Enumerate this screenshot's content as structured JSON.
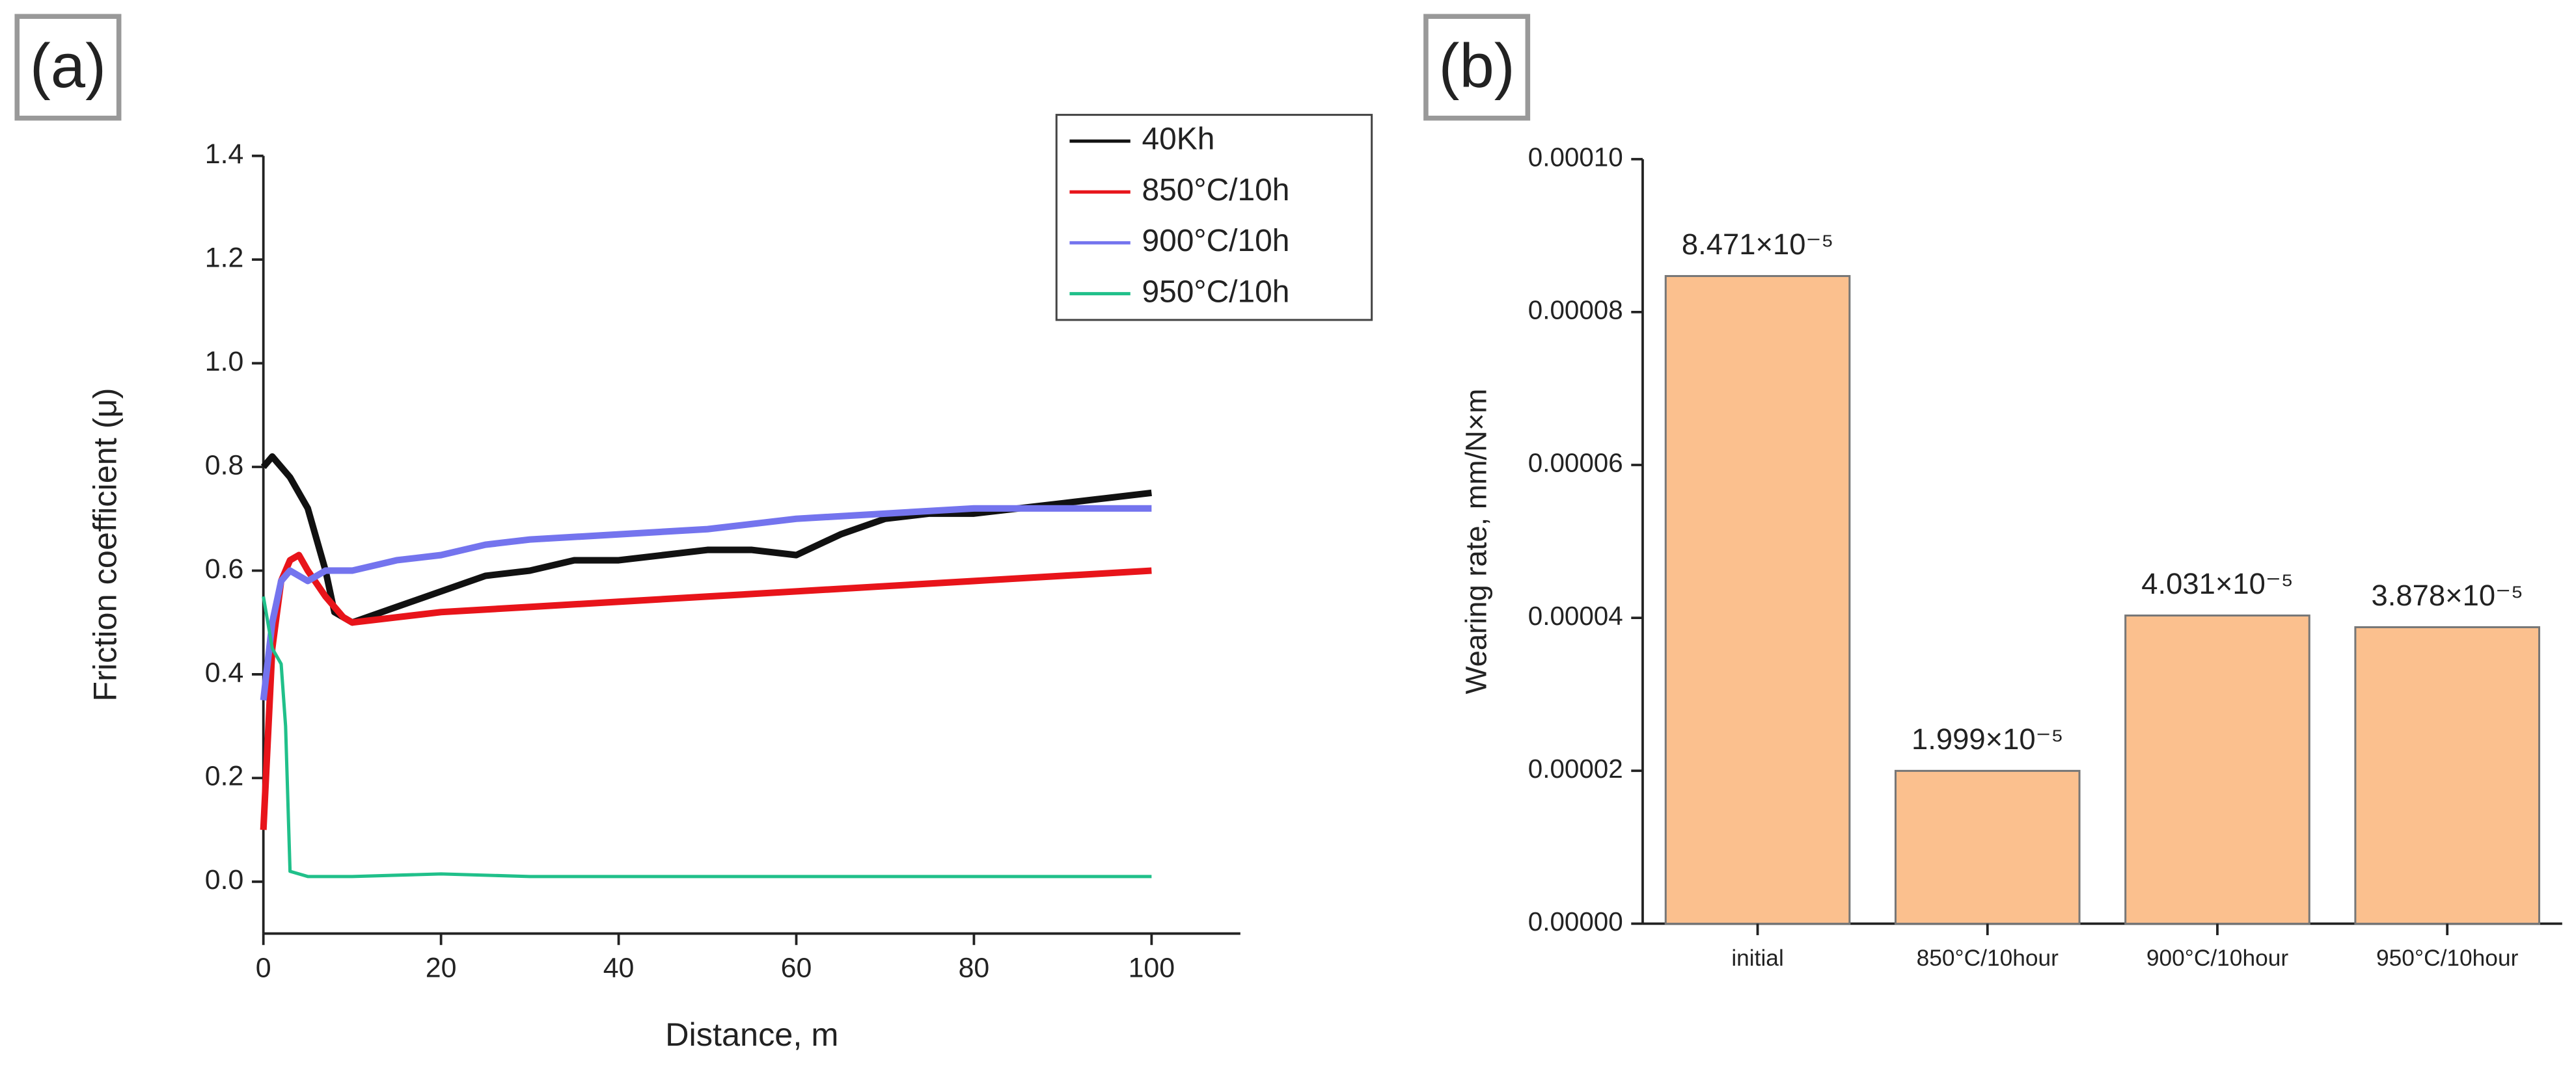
{
  "chart_data": [
    {
      "type": "line",
      "panel_label": "(a)",
      "x_label": "Distance, m",
      "y_label": "Friction coefficient (μ)",
      "xlim": [
        0,
        110
      ],
      "xticks": [
        0,
        20,
        40,
        60,
        80,
        100
      ],
      "ylim": [
        -0.1,
        1.4
      ],
      "yticks": [
        {
          "value": 0,
          "label": "0.0"
        },
        0.2,
        0.4,
        0.6,
        0.8,
        {
          "value": 1,
          "label": "1.0"
        },
        1.2,
        1.4
      ],
      "legend": "upper right",
      "series": [
        {
          "name": "40Kh",
          "color": "#111111",
          "x": [
            0,
            1,
            2,
            3,
            5,
            7,
            8,
            10,
            15,
            20,
            25,
            30,
            35,
            40,
            45,
            50,
            55,
            60,
            65,
            70,
            75,
            80,
            85,
            90,
            95,
            100
          ],
          "values": [
            0.8,
            0.82,
            0.8,
            0.78,
            0.72,
            0.6,
            0.52,
            0.5,
            0.53,
            0.56,
            0.59,
            0.6,
            0.62,
            0.62,
            0.63,
            0.64,
            0.64,
            0.63,
            0.67,
            0.7,
            0.71,
            0.71,
            0.72,
            0.73,
            0.74,
            0.75
          ]
        },
        {
          "name": "850°C/10h",
          "color": "#e8141a",
          "x": [
            0,
            1,
            2,
            3,
            4,
            5,
            7,
            9,
            10,
            15,
            20,
            30,
            40,
            50,
            60,
            70,
            80,
            90,
            100
          ],
          "values": [
            0.1,
            0.45,
            0.58,
            0.62,
            0.63,
            0.6,
            0.55,
            0.51,
            0.5,
            0.51,
            0.52,
            0.53,
            0.54,
            0.55,
            0.56,
            0.57,
            0.58,
            0.59,
            0.6
          ]
        },
        {
          "name": "900°C/10h",
          "color": "#7474ee",
          "x": [
            0,
            1,
            2,
            3,
            5,
            7,
            10,
            15,
            20,
            25,
            30,
            40,
            50,
            60,
            70,
            80,
            90,
            100
          ],
          "values": [
            0.35,
            0.5,
            0.58,
            0.6,
            0.58,
            0.6,
            0.6,
            0.62,
            0.63,
            0.65,
            0.66,
            0.67,
            0.68,
            0.7,
            0.71,
            0.72,
            0.72,
            0.72
          ]
        },
        {
          "name": "950°C/10h",
          "color": "#20c08a",
          "x": [
            0,
            1,
            2,
            2.5,
            3,
            5,
            10,
            20,
            30,
            50,
            70,
            100
          ],
          "values": [
            0.55,
            0.45,
            0.42,
            0.3,
            0.02,
            0.01,
            0.01,
            0.015,
            0.01,
            0.01,
            0.01,
            0.01
          ]
        }
      ]
    },
    {
      "type": "bar",
      "panel_label": "(b)",
      "y_label": "Wearing rate, mm/N×m",
      "categories": [
        "initial",
        "850°C/10hour",
        "900°C/10hour",
        "950°C/10hour"
      ],
      "values": [
        8.471e-05,
        1.999e-05,
        4.031e-05,
        3.878e-05
      ],
      "value_labels": [
        "8.471×10⁻⁵",
        "1.999×10⁻⁵",
        "4.031×10⁻⁵",
        "3.878×10⁻⁵"
      ],
      "color": "#fbc08e",
      "ylim": [
        0,
        0.0001
      ],
      "yticks": [
        {
          "value": 0,
          "label": "0.00000"
        },
        {
          "value": 2e-05,
          "label": "0.00002"
        },
        {
          "value": 4e-05,
          "label": "0.00004"
        },
        {
          "value": 6e-05,
          "label": "0.00006"
        },
        {
          "value": 8e-05,
          "label": "0.00008"
        },
        {
          "value": 0.0001,
          "label": "0.00010"
        }
      ]
    }
  ]
}
